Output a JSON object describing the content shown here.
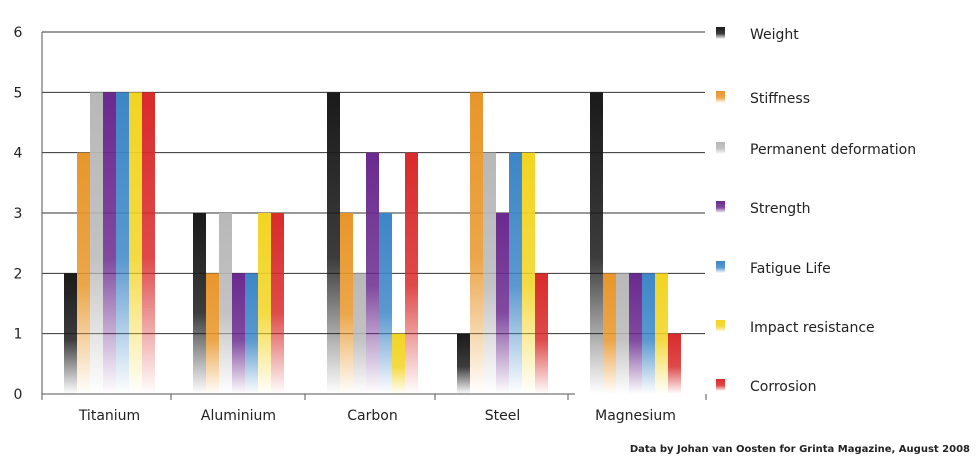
{
  "chart_data": {
    "type": "bar",
    "categories": [
      "Titanium",
      "Aluminium",
      "Carbon",
      "Steel",
      "Magnesium"
    ],
    "series": [
      {
        "name": "Weight",
        "color": "#1a1a1a",
        "values": [
          2,
          3,
          5,
          1,
          5
        ]
      },
      {
        "name": "Stiffness",
        "color": "#e8962a",
        "values": [
          4,
          2,
          3,
          5,
          2
        ]
      },
      {
        "name": "Permanent deformation",
        "color": "#b8b8b8",
        "values": [
          5,
          3,
          2,
          4,
          2
        ]
      },
      {
        "name": "Strength",
        "color": "#6a2a8e",
        "values": [
          5,
          2,
          4,
          3,
          2
        ]
      },
      {
        "name": "Fatigue Life",
        "color": "#3d86c6",
        "values": [
          5,
          2,
          3,
          4,
          2
        ]
      },
      {
        "name": "Impact resistance",
        "color": "#f2d422",
        "values": [
          5,
          3,
          1,
          4,
          2
        ]
      },
      {
        "name": "Corrosion",
        "color": "#d92b2b",
        "values": [
          5,
          3,
          4,
          2,
          1
        ]
      }
    ],
    "y_ticks": [
      "0",
      "1",
      "2",
      "3",
      "4",
      "5",
      "6"
    ],
    "ylim": [
      0,
      6
    ],
    "grid": true,
    "legend_position": "right",
    "title": "",
    "xlabel": "",
    "ylabel": ""
  },
  "footer": {
    "credit": "Data by Johan van Oosten for Grinta Magazine, August 2008"
  }
}
